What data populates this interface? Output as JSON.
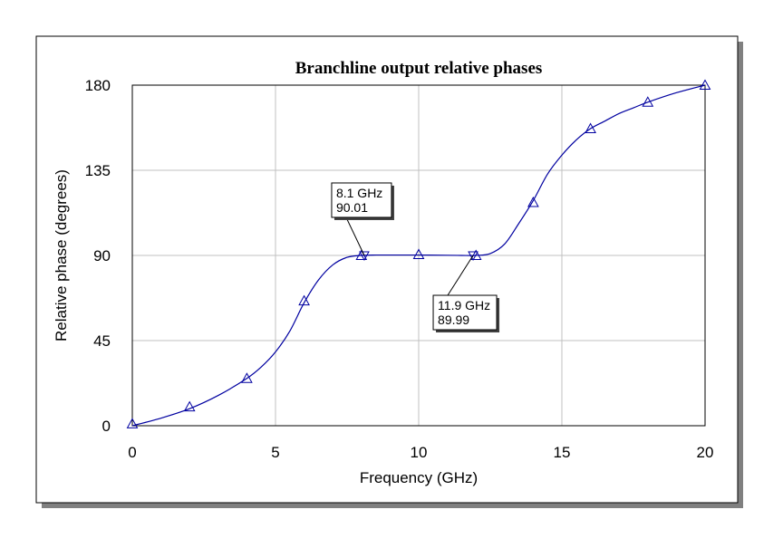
{
  "chart_data": {
    "type": "line",
    "title": "Branchline output relative phases",
    "xlabel": "Frequency (GHz)",
    "ylabel": "Relative phase (degrees)",
    "xlim": [
      0,
      20
    ],
    "ylim": [
      0,
      180
    ],
    "xticks": [
      0,
      5,
      10,
      15,
      20
    ],
    "yticks": [
      0,
      45,
      90,
      135,
      180
    ],
    "grid": true,
    "line_color": "#0000a0",
    "grid_color": "#c0c0c0",
    "series": [
      {
        "curve": [
          [
            0,
            0
          ],
          [
            1,
            4
          ],
          [
            2,
            9
          ],
          [
            3,
            16
          ],
          [
            4,
            25
          ],
          [
            4.5,
            31
          ],
          [
            5,
            39
          ],
          [
            5.5,
            50
          ],
          [
            6,
            65
          ],
          [
            6.5,
            77
          ],
          [
            7,
            85
          ],
          [
            7.5,
            89
          ],
          [
            8,
            90
          ],
          [
            8.5,
            90.2
          ],
          [
            9,
            90.2
          ],
          [
            10,
            90.2
          ],
          [
            11,
            90.1
          ],
          [
            11.5,
            90
          ],
          [
            12,
            90
          ],
          [
            12.5,
            91
          ],
          [
            13,
            96
          ],
          [
            13.5,
            107
          ],
          [
            14,
            119
          ],
          [
            14.5,
            133
          ],
          [
            15,
            143
          ],
          [
            15.5,
            151
          ],
          [
            16,
            157
          ],
          [
            16.5,
            161
          ],
          [
            17,
            165
          ],
          [
            17.5,
            168
          ],
          [
            18,
            171
          ],
          [
            19,
            176
          ],
          [
            20,
            180
          ]
        ],
        "markers": [
          [
            0,
            1
          ],
          [
            2,
            10
          ],
          [
            4,
            25
          ],
          [
            6,
            66
          ],
          [
            8,
            90
          ],
          [
            10,
            90.5
          ],
          [
            12,
            90
          ],
          [
            14,
            118
          ],
          [
            16,
            157
          ],
          [
            18,
            171
          ],
          [
            20,
            180
          ]
        ]
      }
    ],
    "annotations": [
      {
        "x": 8.1,
        "y": 90.01,
        "line1": "8.1 GHz",
        "line2": "90.01",
        "placement": "above-left"
      },
      {
        "x": 11.9,
        "y": 89.99,
        "line1": "11.9 GHz",
        "line2": "89.99",
        "placement": "below-left"
      }
    ]
  }
}
